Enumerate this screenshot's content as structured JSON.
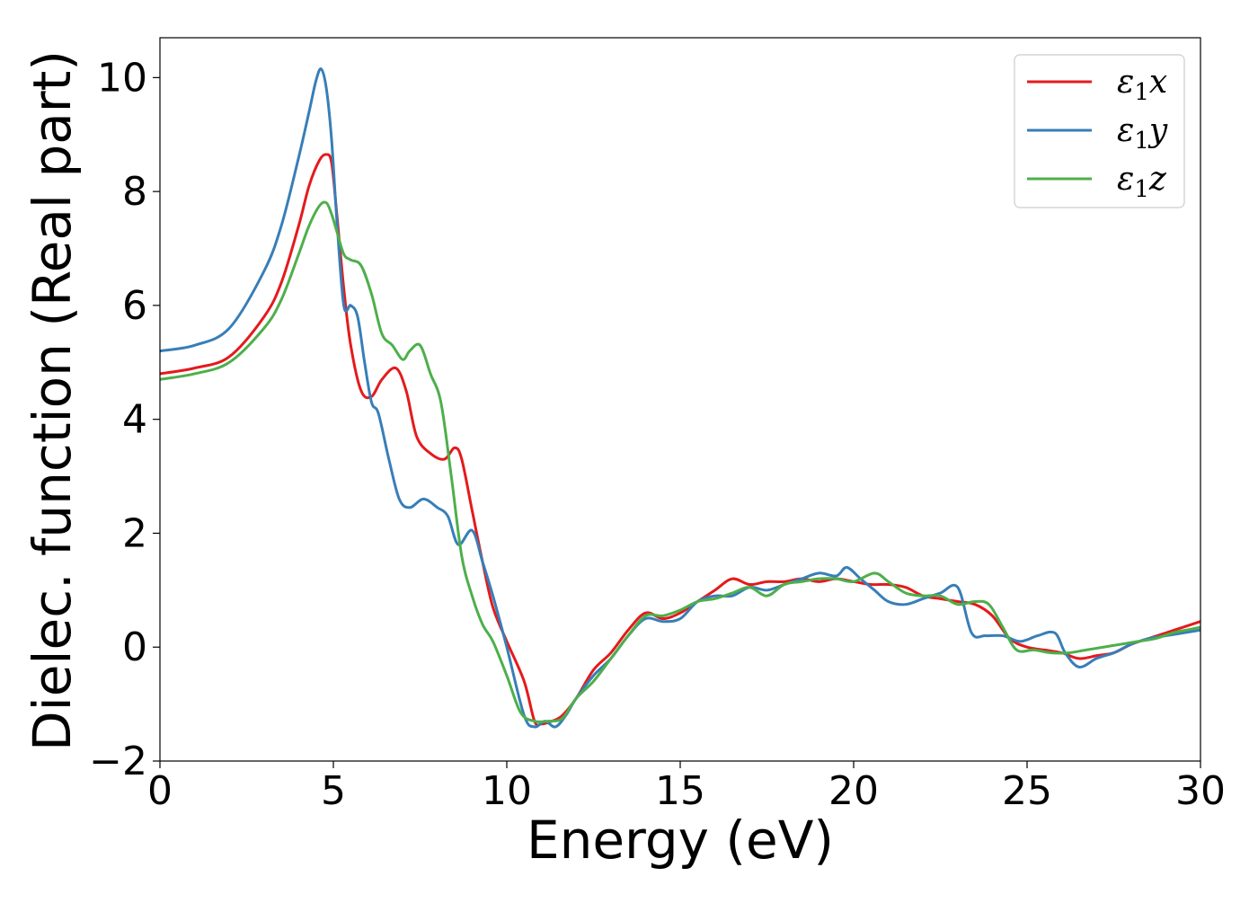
{
  "chart_data": {
    "type": "line",
    "title": "",
    "xlabel": "Energy (eV)",
    "ylabel": "Dielec. function (Real part)",
    "xlim": [
      0,
      30
    ],
    "ylim": [
      -2,
      10.7
    ],
    "xticks": [
      0,
      5,
      10,
      15,
      20,
      25,
      30
    ],
    "xtick_labels": [
      "0",
      "5",
      "10",
      "15",
      "20",
      "25",
      "30"
    ],
    "yticks": [
      -2,
      0,
      2,
      4,
      6,
      8,
      10
    ],
    "ytick_labels": [
      "−2",
      "0",
      "2",
      "4",
      "6",
      "8",
      "10"
    ],
    "grid": false,
    "legend_position": "top-right",
    "series": [
      {
        "name": "ε₁x",
        "name_base": "ε",
        "name_sub": "1",
        "name_tail": "x",
        "color": "#e41a1c",
        "x": [
          0,
          1,
          2,
          3,
          3.5,
          4,
          4.3,
          4.6,
          4.8,
          4.95,
          5.1,
          5.3,
          5.5,
          5.8,
          6.1,
          6.4,
          6.8,
          7.1,
          7.4,
          7.8,
          8.2,
          8.5,
          8.7,
          9.0,
          9.3,
          9.6,
          10.0,
          10.5,
          10.8,
          11.0,
          11.3,
          11.6,
          12.0,
          12.5,
          13.0,
          13.5,
          14.0,
          14.5,
          15.0,
          15.5,
          16.0,
          16.5,
          17.0,
          17.5,
          18.0,
          18.5,
          19.0,
          19.5,
          20.0,
          20.5,
          21.0,
          21.5,
          22.0,
          22.5,
          23.0,
          23.5,
          24.0,
          24.5,
          25.0,
          25.5,
          26.0,
          26.5,
          27.0,
          27.5,
          28.0,
          28.5,
          29.0,
          29.5,
          30.0
        ],
        "y": [
          4.8,
          4.9,
          5.1,
          5.8,
          6.4,
          7.4,
          8.1,
          8.55,
          8.65,
          8.5,
          7.6,
          6.3,
          5.3,
          4.5,
          4.4,
          4.7,
          4.9,
          4.5,
          3.7,
          3.4,
          3.3,
          3.5,
          3.3,
          2.4,
          1.5,
          0.7,
          0.1,
          -0.6,
          -1.3,
          -1.35,
          -1.3,
          -1.2,
          -0.9,
          -0.4,
          -0.1,
          0.3,
          0.6,
          0.5,
          0.6,
          0.8,
          1.0,
          1.2,
          1.1,
          1.15,
          1.15,
          1.2,
          1.15,
          1.2,
          1.15,
          1.1,
          1.1,
          1.05,
          0.9,
          0.85,
          0.8,
          0.75,
          0.55,
          0.15,
          0.0,
          -0.05,
          -0.1,
          -0.2,
          -0.15,
          -0.1,
          0.05,
          0.15,
          0.25,
          0.35,
          0.45
        ]
      },
      {
        "name": "ε₁y",
        "name_base": "ε",
        "name_sub": "1",
        "name_tail": "y",
        "color": "#377eb8",
        "x": [
          0,
          1,
          2,
          3,
          3.5,
          4,
          4.3,
          4.5,
          4.65,
          4.8,
          4.95,
          5.1,
          5.3,
          5.5,
          5.7,
          5.9,
          6.1,
          6.3,
          6.6,
          6.9,
          7.2,
          7.6,
          8.0,
          8.3,
          8.6,
          9.0,
          9.3,
          9.6,
          10.0,
          10.5,
          10.8,
          11.1,
          11.4,
          11.7,
          12.0,
          12.5,
          13.0,
          13.5,
          14.0,
          14.5,
          15.0,
          15.5,
          16.0,
          16.5,
          17.0,
          17.5,
          18.0,
          18.5,
          19.0,
          19.5,
          19.8,
          20.2,
          20.6,
          21.0,
          21.5,
          22.0,
          22.5,
          23.0,
          23.4,
          23.8,
          24.3,
          24.8,
          25.3,
          25.8,
          26.1,
          26.5,
          27.0,
          27.5,
          28.0,
          28.5,
          29.0,
          29.5,
          30.0
        ],
        "y": [
          5.2,
          5.3,
          5.6,
          6.6,
          7.4,
          8.6,
          9.4,
          9.95,
          10.15,
          9.8,
          8.9,
          7.5,
          6.0,
          6.0,
          5.8,
          5.0,
          4.3,
          4.1,
          3.3,
          2.6,
          2.45,
          2.6,
          2.45,
          2.3,
          1.8,
          2.05,
          1.5,
          0.9,
          0.0,
          -1.2,
          -1.4,
          -1.3,
          -1.4,
          -1.2,
          -0.9,
          -0.5,
          -0.2,
          0.2,
          0.5,
          0.45,
          0.5,
          0.8,
          0.9,
          0.9,
          1.05,
          1.0,
          1.1,
          1.2,
          1.3,
          1.25,
          1.4,
          1.2,
          1.0,
          0.8,
          0.75,
          0.85,
          0.95,
          1.05,
          0.25,
          0.2,
          0.2,
          0.1,
          0.2,
          0.25,
          -0.1,
          -0.35,
          -0.2,
          -0.1,
          0.05,
          0.15,
          0.2,
          0.25,
          0.3
        ]
      },
      {
        "name": "ε₁z",
        "name_base": "ε",
        "name_sub": "1",
        "name_tail": "z",
        "color": "#4daf4a",
        "x": [
          0,
          1,
          2,
          3,
          3.5,
          4,
          4.3,
          4.6,
          4.8,
          4.95,
          5.1,
          5.3,
          5.5,
          5.8,
          6.1,
          6.4,
          6.7,
          7.0,
          7.2,
          7.5,
          7.8,
          8.1,
          8.4,
          8.7,
          9.0,
          9.3,
          9.6,
          10.0,
          10.4,
          10.8,
          11.2,
          11.6,
          12.0,
          12.5,
          13.0,
          13.5,
          14.0,
          14.5,
          15.0,
          15.5,
          16.0,
          16.5,
          17.0,
          17.5,
          18.0,
          18.5,
          19.0,
          19.5,
          20.0,
          20.6,
          21.0,
          21.5,
          22.0,
          22.5,
          23.0,
          23.5,
          23.9,
          24.3,
          24.7,
          25.2,
          25.7,
          26.2,
          26.7,
          27.2,
          27.7,
          28.2,
          28.7,
          29.2,
          29.6,
          30.0
        ],
        "y": [
          4.7,
          4.8,
          5.0,
          5.6,
          6.1,
          6.9,
          7.4,
          7.75,
          7.8,
          7.6,
          7.3,
          6.9,
          6.8,
          6.7,
          6.2,
          5.5,
          5.3,
          5.05,
          5.2,
          5.3,
          4.8,
          4.3,
          3.0,
          1.6,
          0.9,
          0.4,
          0.1,
          -0.5,
          -1.15,
          -1.3,
          -1.3,
          -1.25,
          -0.9,
          -0.6,
          -0.2,
          0.2,
          0.55,
          0.55,
          0.65,
          0.8,
          0.85,
          0.95,
          1.05,
          0.9,
          1.1,
          1.15,
          1.2,
          1.2,
          1.15,
          1.3,
          1.15,
          0.95,
          0.9,
          0.9,
          0.75,
          0.8,
          0.75,
          0.35,
          -0.05,
          -0.05,
          -0.1,
          -0.1,
          -0.05,
          0.0,
          0.05,
          0.1,
          0.15,
          0.25,
          0.3,
          0.35
        ]
      }
    ]
  }
}
